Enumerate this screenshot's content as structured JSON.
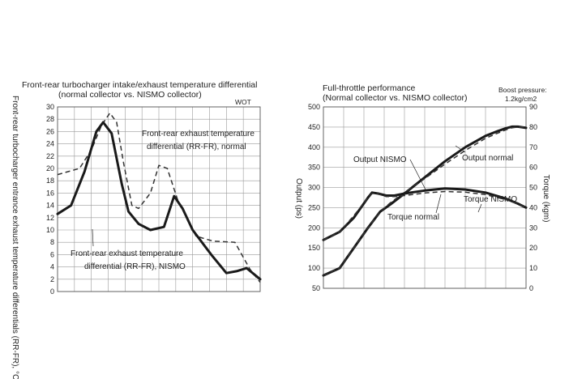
{
  "chart_data": [
    {
      "type": "line",
      "title": "Front-rear turbocharger intake/exhaust temperature differential",
      "subtitle": "(normal collector vs. NISMO collector)",
      "ylabel": "Front-rear turbocharger entrance exhaust temperature differentials (RR-FR), °C",
      "corner_label": "WOT",
      "ylim": [
        0,
        30
      ],
      "xlim": [
        0,
        12
      ],
      "y_ticks": [
        "0",
        "2",
        "4",
        "6",
        "8",
        "10",
        "12",
        "14",
        "16",
        "18",
        "20",
        "22",
        "24",
        "26",
        "28",
        "30"
      ],
      "series": [
        {
          "name": "Front-rear exhaust temperature differential (RR-FR), normal",
          "style": "dashed",
          "x": [
            0,
            1.3,
            2.0,
            2.6,
            3.1,
            3.5,
            3.9,
            4.4,
            4.8,
            5.5,
            6.0,
            6.5,
            7.1,
            8.2,
            9.2,
            10.5,
            11.4,
            12
          ],
          "values": [
            19,
            20,
            23,
            27,
            29,
            27.5,
            21,
            14,
            13.5,
            16,
            20.5,
            20,
            15,
            9,
            8.2,
            8,
            3.6,
            1.5
          ]
        },
        {
          "name": "Front-rear exhaust temperature differential (RR-FR), NISMO",
          "style": "solid",
          "x": [
            0,
            0.8,
            1.6,
            2.3,
            2.7,
            3.2,
            3.8,
            4.2,
            4.8,
            5.5,
            6.3,
            6.9,
            7.4,
            8.0,
            9.1,
            10.0,
            10.6,
            11.2,
            12
          ],
          "values": [
            12.6,
            14,
            19.5,
            26,
            27.5,
            25.7,
            17.5,
            13,
            11,
            10,
            10.5,
            15.5,
            13.5,
            10,
            6,
            3,
            3.3,
            3.8,
            2
          ]
        }
      ],
      "annotations": [
        {
          "lines": [
            "Front-rear exhaust temperature",
            "differential (RR-FR), normal"
          ]
        },
        {
          "lines": [
            "Front-rear exhaust temperature",
            "differential (RR-FR), NISMO"
          ]
        }
      ]
    },
    {
      "type": "line",
      "title": "Full-throttle performance",
      "subtitle": "(Normal collector vs. NISMO collector)",
      "boost_label": [
        "Boost pressure:",
        "1.2kg/cm2"
      ],
      "ylabel_left": "Output (ps)",
      "ylabel_right": "Torque (kgm)",
      "ylim_left": [
        50,
        500
      ],
      "ylim_right": [
        0,
        90
      ],
      "xlim": [
        0,
        10
      ],
      "y_ticks_left": [
        "50",
        "100",
        "150",
        "200",
        "250",
        "300",
        "350",
        "400",
        "450",
        "500"
      ],
      "y_ticks_right": [
        "0",
        "10",
        "20",
        "30",
        "40",
        "50",
        "60",
        "70",
        "80",
        "90"
      ],
      "series": [
        {
          "name": "Output NISMO",
          "axis": "left",
          "style": "solid",
          "x": [
            0,
            0.8,
            1.5,
            2.2,
            2.8,
            3.3,
            4.0,
            5.0,
            6.0,
            7.0,
            8.0,
            8.6,
            9.0,
            9.3,
            9.6,
            10
          ],
          "values": [
            82,
            100,
            150,
            200,
            240,
            258,
            285,
            325,
            365,
            400,
            428,
            440,
            447,
            451,
            451,
            448
          ]
        },
        {
          "name": "Output normal",
          "axis": "left",
          "style": "dashed",
          "x": [
            0,
            0.8,
            1.5,
            2.2,
            2.8,
            3.3,
            4.0,
            5.0,
            6.0,
            7.0,
            8.0,
            8.6,
            9.0,
            9.3,
            9.6,
            10
          ],
          "values": [
            82,
            100,
            150,
            200,
            240,
            262,
            288,
            322,
            358,
            392,
            422,
            435,
            443,
            448,
            450,
            450
          ]
        },
        {
          "name": "Torque NISMO",
          "axis": "right",
          "style": "solid",
          "x": [
            0,
            0.8,
            1.5,
            2.2,
            2.4,
            2.7,
            3.1,
            3.5,
            4.0,
            5.0,
            6.0,
            7.0,
            8.0,
            9.0,
            9.6,
            10
          ],
          "values": [
            24,
            28,
            35,
            45,
            47.5,
            47,
            46,
            46,
            47,
            48.5,
            49.5,
            49,
            47.5,
            44.5,
            42,
            40
          ]
        },
        {
          "name": "Torque normal",
          "axis": "right",
          "style": "dashed",
          "x": [
            0,
            0.8,
            1.5,
            2.2,
            2.4,
            2.7,
            3.1,
            3.5,
            4.0,
            5.0,
            6.0,
            7.0,
            8.0,
            9.0,
            9.6,
            10
          ],
          "values": [
            24,
            28,
            36,
            45,
            47,
            47,
            45.5,
            45.5,
            46,
            47.3,
            48,
            47.7,
            46.5,
            44,
            42,
            40
          ]
        }
      ],
      "annotations": [
        "Output NISMO",
        "Output normal",
        "Torque NISMO",
        "Torque normal"
      ]
    }
  ]
}
